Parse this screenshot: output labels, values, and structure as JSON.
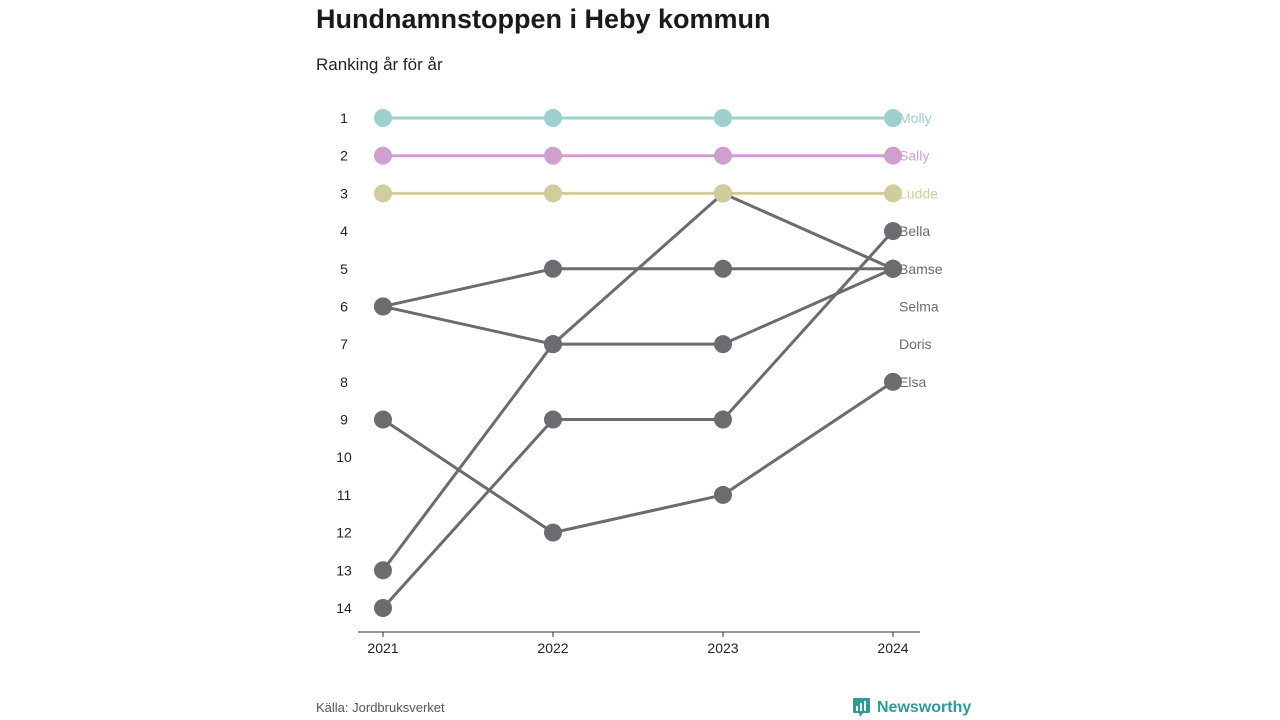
{
  "title": "Hundnamnstoppen i Heby kommun",
  "subtitle": "Ranking år för år",
  "source": "Källa: Jordbruksverket",
  "brand": "Newsworthy",
  "colors": {
    "Molly": "#9dcfcf",
    "Sally": "#cf9fd0",
    "Ludde": "#cfcd9c",
    "other": "#6b6b70",
    "brand": "#2e9b96"
  },
  "chart_data": {
    "type": "line",
    "title": "Hundnamnstoppen i Heby kommun",
    "subtitle": "Ranking år för år",
    "x": [
      "2021",
      "2022",
      "2023",
      "2024"
    ],
    "y_ticks": [
      "1",
      "2",
      "3",
      "4",
      "5",
      "6",
      "7",
      "8",
      "9",
      "10",
      "11",
      "12",
      "13",
      "14"
    ],
    "ylim": [
      1,
      14
    ],
    "y_inverted": true,
    "grid": false,
    "series": [
      {
        "name": "Molly",
        "values": [
          1,
          1,
          1,
          1
        ],
        "highlight": true
      },
      {
        "name": "Sally",
        "values": [
          2,
          2,
          2,
          2
        ],
        "highlight": true
      },
      {
        "name": "Ludde",
        "values": [
          3,
          3,
          3,
          3
        ],
        "highlight": true
      },
      {
        "name": "Bella",
        "values": [
          14,
          9,
          9,
          4
        ]
      },
      {
        "name": "Bamse",
        "values": [
          6,
          5,
          5,
          5
        ]
      },
      {
        "name": "Selma",
        "values": [
          13,
          7,
          3,
          5
        ]
      },
      {
        "name": "Doris",
        "values": [
          6,
          7,
          7,
          5
        ]
      },
      {
        "name": "Elsa",
        "values": [
          9,
          12,
          11,
          8
        ]
      }
    ]
  }
}
